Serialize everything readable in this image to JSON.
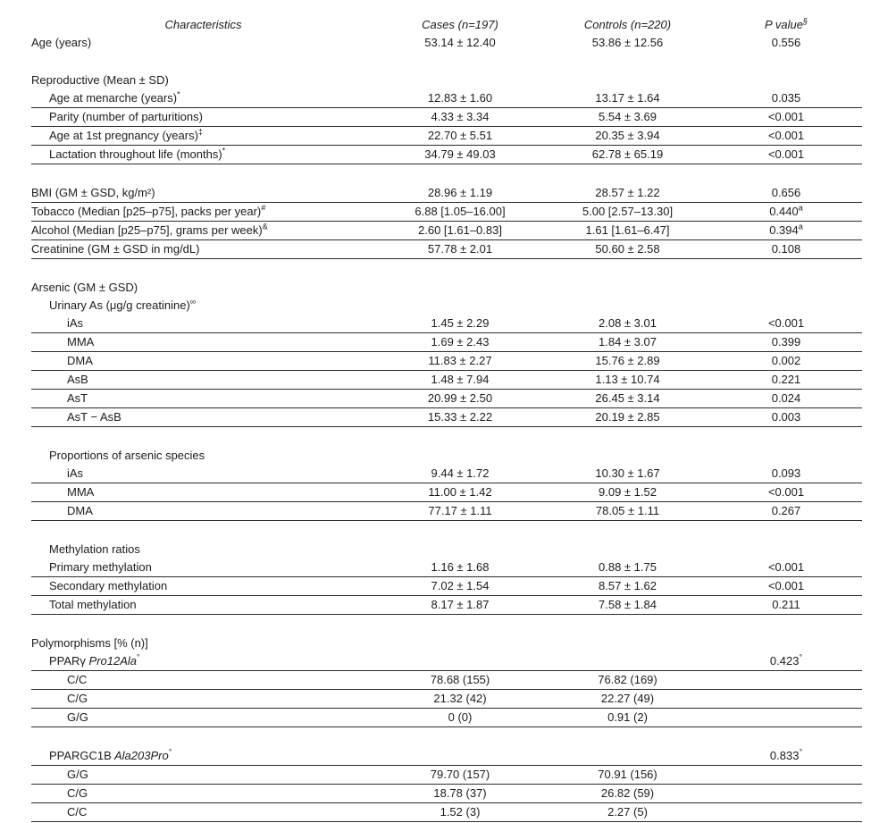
{
  "table": {
    "header": {
      "characteristics": "Characteristics",
      "cases": "Cases (n=197)",
      "controls": "Controls (n=220)",
      "pvalue": "P value",
      "pvalue_sup": "§"
    },
    "rows": [
      {
        "label": "Age (years)",
        "indent": 0,
        "cases": "53.14 ± 12.40",
        "controls": "53.86 ± 12.56",
        "p": "0.556",
        "rule": false
      },
      {
        "spacer": true
      },
      {
        "label": "Reproductive (Mean ± SD)",
        "indent": 0,
        "rule": false
      },
      {
        "label": "Age at menarche (years)",
        "sup": "*",
        "indent": 1,
        "cases": "12.83 ± 1.60",
        "controls": "13.17 ± 1.64",
        "p": "0.035",
        "rule": true
      },
      {
        "label": "Parity (number of parturitions)",
        "indent": 1,
        "cases": "4.33 ± 3.34",
        "controls": "5.54 ± 3.69",
        "p": "<0.001",
        "rule": true
      },
      {
        "label": "Age at 1st pregnancy (years)",
        "sup": "‡",
        "indent": 1,
        "cases": "22.70 ± 5.51",
        "controls": "20.35 ± 3.94",
        "p": "<0.001",
        "rule": true
      },
      {
        "label": "Lactation throughout life (months)",
        "sup": "*",
        "indent": 1,
        "cases": "34.79 ± 49.03",
        "controls": "62.78 ± 65.19",
        "p": "<0.001",
        "rule": true
      },
      {
        "spacer": true
      },
      {
        "label": "BMI (GM ± GSD, kg/m²)",
        "indent": 0,
        "cases": "28.96 ± 1.19",
        "controls": "28.57 ± 1.22",
        "p": "0.656",
        "rule": true
      },
      {
        "label": "Tobacco (Median [p25–p75], packs per year)",
        "sup": "#",
        "indent": 0,
        "cases": "6.88 [1.05–16.00]",
        "controls": "5.00 [2.57–13.30]",
        "p": "0.440",
        "p_sup": "a",
        "rule": true
      },
      {
        "label": "Alcohol (Median [p25–p75], grams per week)",
        "sup": "&",
        "indent": 0,
        "cases": "2.60 [1.61–0.83]",
        "controls": "1.61 [1.61–6.47]",
        "p": "0.394",
        "p_sup": "a",
        "rule": true
      },
      {
        "label": "Creatinine (GM ± GSD in mg/dL)",
        "indent": 0,
        "cases": "57.78 ± 2.01",
        "controls": "50.60 ± 2.58",
        "p": "0.108",
        "rule": true
      },
      {
        "spacer": true
      },
      {
        "label": "Arsenic (GM ± GSD)",
        "indent": 0,
        "rule": false
      },
      {
        "label": "Urinary As (μg/g creatinine)",
        "sup": "∞",
        "indent": 1,
        "rule": false
      },
      {
        "label": "iAs",
        "indent": 2,
        "cases": "1.45 ± 2.29",
        "controls": "2.08 ± 3.01",
        "p": "<0.001",
        "rule": true
      },
      {
        "label": "MMA",
        "indent": 2,
        "cases": "1.69 ± 2.43",
        "controls": "1.84 ± 3.07",
        "p": "0.399",
        "rule": true
      },
      {
        "label": "DMA",
        "indent": 2,
        "cases": "11.83 ± 2.27",
        "controls": "15.76 ± 2.89",
        "p": "0.002",
        "rule": true
      },
      {
        "label": "AsB",
        "indent": 2,
        "cases": "1.48 ± 7.94",
        "controls": "1.13 ± 10.74",
        "p": "0.221",
        "rule": true
      },
      {
        "label": "AsT",
        "indent": 2,
        "cases": "20.99 ± 2.50",
        "controls": "26.45 ± 3.14",
        "p": "0.024",
        "rule": true
      },
      {
        "label": "AsT − AsB",
        "indent": 2,
        "cases": "15.33 ± 2.22",
        "controls": "20.19 ± 2.85",
        "p": "0.003",
        "rule": true
      },
      {
        "spacer": true
      },
      {
        "label": "Proportions of arsenic species",
        "indent": 1,
        "rule": false
      },
      {
        "label": "iAs",
        "indent": 2,
        "cases": "9.44 ± 1.72",
        "controls": "10.30 ± 1.67",
        "p": "0.093",
        "rule": true
      },
      {
        "label": "MMA",
        "indent": 2,
        "cases": "11.00 ± 1.42",
        "controls": "9.09 ± 1.52",
        "p": "<0.001",
        "rule": true
      },
      {
        "label": "DMA",
        "indent": 2,
        "cases": "77.17 ± 1.11",
        "controls": "78.05 ± 1.11",
        "p": "0.267",
        "rule": true
      },
      {
        "spacer": true
      },
      {
        "label": "Methylation ratios",
        "indent": 1,
        "rule": false
      },
      {
        "label": "Primary methylation",
        "indent": 1,
        "cases": "1.16 ± 1.68",
        "controls": "0.88 ± 1.75",
        "p": "<0.001",
        "rule": true
      },
      {
        "label": "Secondary methylation",
        "indent": 1,
        "cases": "7.02 ± 1.54",
        "controls": "8.57 ± 1.62",
        "p": "<0.001",
        "rule": true
      },
      {
        "label": "Total methylation",
        "indent": 1,
        "cases": "8.17 ± 1.87",
        "controls": "7.58 ± 1.84",
        "p": "0.211",
        "rule": true
      },
      {
        "spacer": true
      },
      {
        "label": "Polymorphisms [% (n)]",
        "indent": 0,
        "rule": false
      },
      {
        "label": "PPARγ",
        "label_italic": "Pro12Ala",
        "sup": "°",
        "indent": 1,
        "p": "0.423",
        "p_sup": "°",
        "rule": true
      },
      {
        "label": "C/C",
        "indent": 2,
        "cases": "78.68 (155)",
        "controls": "76.82 (169)",
        "rule": true
      },
      {
        "label": "C/G",
        "indent": 2,
        "cases": "21.32 (42)",
        "controls": "22.27 (49)",
        "rule": true
      },
      {
        "label": "G/G",
        "indent": 2,
        "cases": "0 (0)",
        "controls": "0.91 (2)",
        "rule": true
      },
      {
        "spacer": true
      },
      {
        "label": "PPARGC1B",
        "label_italic": "Ala203Pro",
        "sup": "°",
        "indent": 1,
        "p": "0.833",
        "p_sup": "°",
        "rule": true
      },
      {
        "label": "G/G",
        "indent": 2,
        "cases": "79.70 (157)",
        "controls": "70.91 (156)",
        "rule": true
      },
      {
        "label": "C/G",
        "indent": 2,
        "cases": "18.78 (37)",
        "controls": "26.82 (59)",
        "rule": true
      },
      {
        "label": "C/C",
        "indent": 2,
        "cases": "1.52 (3)",
        "controls": "2.27 (5)",
        "rule": true
      }
    ]
  }
}
